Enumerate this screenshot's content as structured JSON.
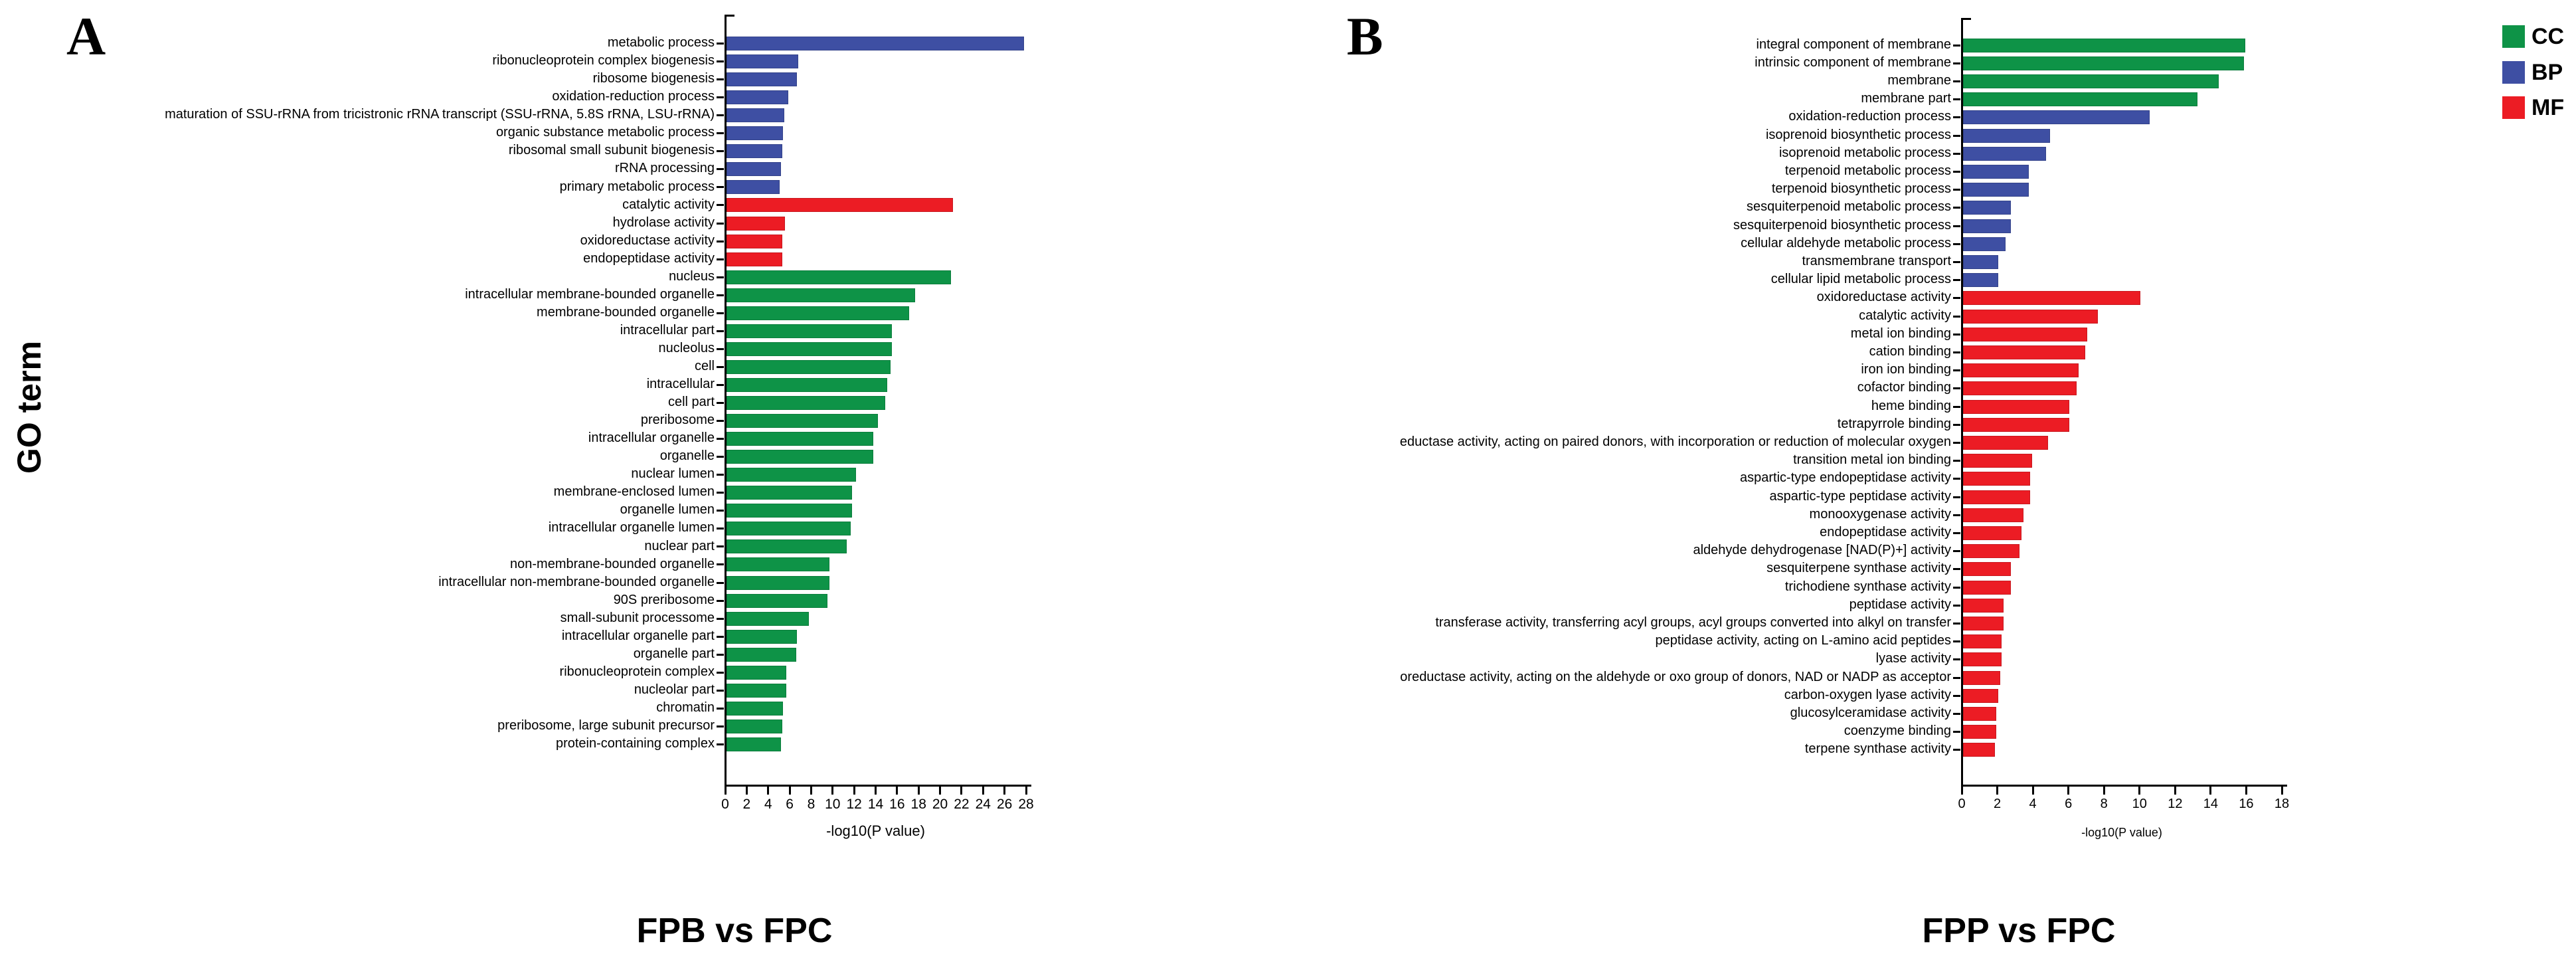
{
  "figure": {
    "panel_a_letter": "A",
    "panel_b_letter": "B",
    "y_axis_label": "GO term",
    "legend": {
      "items": [
        {
          "label": "CC",
          "color": "#0e9347"
        },
        {
          "label": "BP",
          "color": "#3e4fa3"
        },
        {
          "label": "MF",
          "color": "#ec1c24"
        }
      ]
    }
  },
  "chart_data": [
    {
      "type": "bar",
      "orientation": "horizontal",
      "title": "FPB vs FPC",
      "xlabel": "-log10(P value)",
      "ylabel": "GO term",
      "xlim": [
        0,
        28
      ],
      "xticks": [
        0,
        2,
        4,
        6,
        8,
        10,
        12,
        14,
        16,
        18,
        20,
        22,
        24,
        26,
        28
      ],
      "grid": false,
      "legend_position": "top-right",
      "group_colors": {
        "CC": "#0e9347",
        "BP": "#3e4fa3",
        "MF": "#ec1c24"
      },
      "categories": [
        "metabolic process",
        "ribonucleoprotein complex biogenesis",
        "ribosome biogenesis",
        "oxidation-reduction process",
        "maturation of SSU-rRNA from tricistronic rRNA transcript (SSU-rRNA, 5.8S rRNA, LSU-rRNA)",
        "organic substance metabolic process",
        "ribosomal small subunit biogenesis",
        "rRNA processing",
        "primary metabolic process",
        "catalytic activity",
        "hydrolase activity",
        "oxidoreductase activity",
        "endopeptidase activity",
        "nucleus",
        "intracellular membrane-bounded organelle",
        "membrane-bounded organelle",
        "intracellular part",
        "nucleolus",
        "cell",
        "intracellular",
        "cell part",
        "preribosome",
        "intracellular organelle",
        "organelle",
        "nuclear lumen",
        "membrane-enclosed lumen",
        "organelle lumen",
        "intracellular organelle lumen",
        "nuclear part",
        "non-membrane-bounded organelle",
        "intracellular non-membrane-bounded organelle",
        "90S preribosome",
        "small-subunit processome",
        "intracellular organelle part",
        "organelle part",
        "ribonucleoprotein complex",
        "nucleolar part",
        "chromatin",
        "preribosome, large subunit precursor",
        "protein-containing complex"
      ],
      "values": [
        27.7,
        6.7,
        6.6,
        5.8,
        5.4,
        5.3,
        5.2,
        5.1,
        5.0,
        21.1,
        5.5,
        5.2,
        5.2,
        20.9,
        17.6,
        17.0,
        15.4,
        15.4,
        15.3,
        15.0,
        14.8,
        14.1,
        13.7,
        13.7,
        12.1,
        11.7,
        11.7,
        11.6,
        11.2,
        9.6,
        9.6,
        9.4,
        7.7,
        6.6,
        6.5,
        5.6,
        5.6,
        5.3,
        5.2,
        5.1
      ],
      "groups": [
        "BP",
        "BP",
        "BP",
        "BP",
        "BP",
        "BP",
        "BP",
        "BP",
        "BP",
        "MF",
        "MF",
        "MF",
        "MF",
        "CC",
        "CC",
        "CC",
        "CC",
        "CC",
        "CC",
        "CC",
        "CC",
        "CC",
        "CC",
        "CC",
        "CC",
        "CC",
        "CC",
        "CC",
        "CC",
        "CC",
        "CC",
        "CC",
        "CC",
        "CC",
        "CC",
        "CC",
        "CC",
        "CC",
        "CC",
        "CC"
      ]
    },
    {
      "type": "bar",
      "orientation": "horizontal",
      "title": "FPP vs FPC",
      "xlabel": "-log10(P value)",
      "ylabel": "GO term",
      "xlim": [
        0,
        18
      ],
      "xticks": [
        0,
        2,
        4,
        6,
        8,
        10,
        12,
        14,
        16,
        18
      ],
      "grid": false,
      "legend_position": "top-right",
      "group_colors": {
        "CC": "#0e9347",
        "BP": "#3e4fa3",
        "MF": "#ec1c24"
      },
      "categories": [
        "integral component of membrane",
        "intrinsic component of membrane",
        "membrane",
        "membrane part",
        "oxidation-reduction process",
        "isoprenoid biosynthetic process",
        "isoprenoid metabolic process",
        "terpenoid metabolic process",
        "terpenoid biosynthetic process",
        "sesquiterpenoid metabolic process",
        "sesquiterpenoid biosynthetic process",
        "cellular aldehyde metabolic process",
        "transmembrane transport",
        "cellular lipid metabolic process",
        "oxidoreductase activity",
        "catalytic activity",
        "metal ion binding",
        "cation binding",
        "iron ion binding",
        "cofactor binding",
        "heme binding",
        "tetrapyrrole binding",
        "eductase activity, acting on paired donors, with incorporation or reduction of molecular oxygen",
        "transition metal ion binding",
        "aspartic-type endopeptidase activity",
        "aspartic-type peptidase activity",
        "monooxygenase activity",
        "endopeptidase activity",
        "aldehyde dehydrogenase [NAD(P)+] activity",
        "sesquiterpene synthase activity",
        "trichodiene synthase activity",
        "peptidase activity",
        "transferase activity, transferring acyl groups, acyl groups converted into alkyl on transfer",
        "peptidase activity, acting on L-amino acid peptides",
        "lyase activity",
        "oreductase activity, acting on the aldehyde or oxo group of donors, NAD or NADP as acceptor",
        "carbon-oxygen lyase activity",
        "glucosylceramidase activity",
        "coenzyme binding",
        "terpene synthase activity"
      ],
      "values": [
        15.9,
        15.8,
        14.4,
        13.2,
        10.5,
        4.9,
        4.7,
        3.7,
        3.7,
        2.7,
        2.7,
        2.4,
        2.0,
        2.0,
        10.0,
        7.6,
        7.0,
        6.9,
        6.5,
        6.4,
        6.0,
        6.0,
        4.8,
        3.9,
        3.8,
        3.8,
        3.4,
        3.3,
        3.2,
        2.7,
        2.7,
        2.3,
        2.3,
        2.2,
        2.2,
        2.1,
        2.0,
        1.9,
        1.9,
        1.8
      ],
      "groups": [
        "CC",
        "CC",
        "CC",
        "CC",
        "BP",
        "BP",
        "BP",
        "BP",
        "BP",
        "BP",
        "BP",
        "BP",
        "BP",
        "BP",
        "MF",
        "MF",
        "MF",
        "MF",
        "MF",
        "MF",
        "MF",
        "MF",
        "MF",
        "MF",
        "MF",
        "MF",
        "MF",
        "MF",
        "MF",
        "MF",
        "MF",
        "MF",
        "MF",
        "MF",
        "MF",
        "MF",
        "MF",
        "MF",
        "MF",
        "MF"
      ]
    }
  ]
}
